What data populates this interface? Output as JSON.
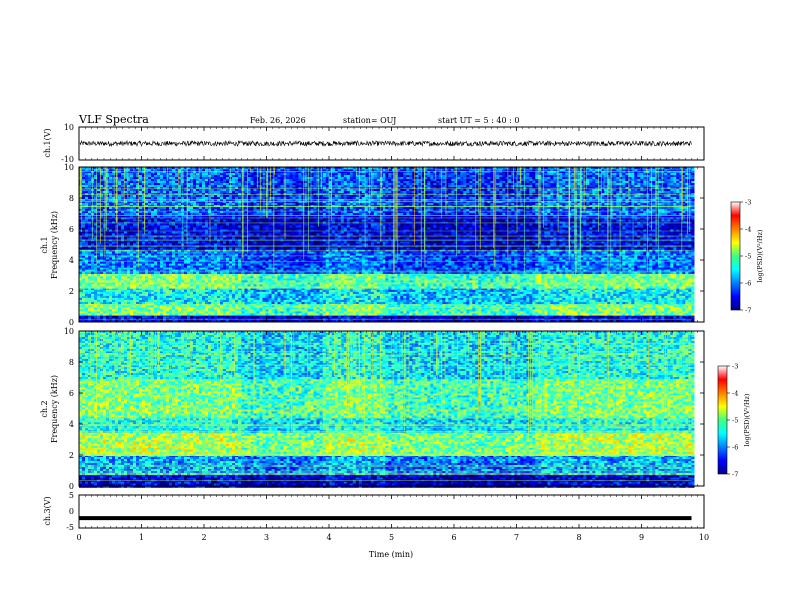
{
  "header": {
    "title": "VLF Spectra",
    "date": "Feb. 26, 2026",
    "station": "station= OUJ",
    "start": "start  UT =   5  : 40 : 0"
  },
  "chart_data": [
    {
      "type": "line",
      "name": "ch1-waveform",
      "ylabel": "ch.1(V)",
      "ylim": [
        -10,
        10
      ],
      "yticks": [
        "10",
        "-10"
      ],
      "xlim": [
        0,
        10
      ],
      "trace_center_v": 0,
      "noise_amplitude_v": 1.5
    },
    {
      "type": "heatmap",
      "name": "ch1-spectrogram",
      "ylabel": [
        "ch.1",
        "Frequency  (kHz)"
      ],
      "ylim": [
        0,
        10
      ],
      "yticks": [
        "0",
        "2",
        "4",
        "6",
        "8",
        "10"
      ],
      "xlim": [
        0,
        9.8
      ],
      "colorbar": {
        "label": "log(PSD)(V²/Hz)",
        "ticks": [
          "-3",
          "-4",
          "-5",
          "-6",
          "-7"
        ],
        "range": [
          -7,
          -3
        ]
      },
      "segments_min": [
        0,
        2.6,
        3.9,
        4.9,
        7.3,
        8.5,
        9.8
      ],
      "bands": [
        {
          "f": [
            0,
            0.5
          ],
          "psd": -6.6
        },
        {
          "f": [
            0.5,
            1.2
          ],
          "psd": -5.0
        },
        {
          "f": [
            1.2,
            2.2
          ],
          "psd": -5.5
        },
        {
          "f": [
            2.2,
            3.2
          ],
          "psd": -5.0
        },
        {
          "f": [
            3.2,
            4.8
          ],
          "psd": -6.0
        },
        {
          "f": [
            4.8,
            7.0
          ],
          "psd": -6.5
        },
        {
          "f": [
            7.0,
            10
          ],
          "psd": -6.1
        }
      ]
    },
    {
      "type": "heatmap",
      "name": "ch2-spectrogram",
      "ylabel": [
        "ch.2",
        "Frequency  (kHz)"
      ],
      "ylim": [
        0,
        10
      ],
      "yticks": [
        "0",
        "2",
        "4",
        "6",
        "8",
        "10"
      ],
      "xlim": [
        0,
        9.8
      ],
      "colorbar": {
        "label": "log(PSD)(V²/Hz)",
        "ticks": [
          "-3",
          "-4",
          "-5",
          "-6",
          "-7"
        ],
        "range": [
          -7,
          -3
        ]
      },
      "segments_min": [
        0,
        2.6,
        3.9,
        4.9,
        7.3,
        8.5,
        9.8
      ],
      "bands": [
        {
          "f": [
            0,
            0.8
          ],
          "psd": -6.6
        },
        {
          "f": [
            0.8,
            2.0
          ],
          "psd": -5.8
        },
        {
          "f": [
            2.0,
            3.5
          ],
          "psd": -4.8
        },
        {
          "f": [
            3.5,
            4.5
          ],
          "psd": -5.4
        },
        {
          "f": [
            4.5,
            7.0
          ],
          "psd": -5.0
        },
        {
          "f": [
            7.0,
            10
          ],
          "psd": -5.4
        }
      ]
    },
    {
      "type": "line",
      "name": "ch3-trace",
      "ylabel": "ch.3(V)",
      "ylim": [
        -5,
        5
      ],
      "yticks": [
        "5",
        "0",
        "-5"
      ],
      "xlim": [
        0,
        10
      ],
      "xlabel": "Time  (min)",
      "xticks": [
        "0",
        "1",
        "2",
        "3",
        "4",
        "5",
        "6",
        "7",
        "8",
        "9",
        "10"
      ],
      "constant_value_v": -2
    }
  ]
}
